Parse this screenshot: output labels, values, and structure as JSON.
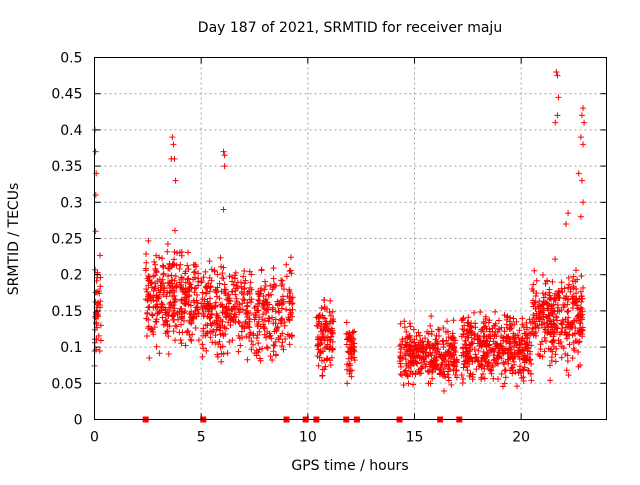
{
  "chart_data": {
    "type": "scatter",
    "title": "Day 187 of 2021, SRMTID for receiver maju",
    "xlabel": "GPS time / hours",
    "ylabel": "SRMTID / TECUs",
    "xlim": [
      0,
      24
    ],
    "ylim": [
      0,
      0.5
    ],
    "grid": true,
    "x_ticks": [
      0,
      5,
      10,
      15,
      20
    ],
    "x_tick_labels": [
      "0",
      "5",
      "10",
      "15",
      "20"
    ],
    "y_ticks": [
      0,
      0.05,
      0.1,
      0.15,
      0.2,
      0.25,
      0.3,
      0.35,
      0.4,
      0.45,
      0.5
    ],
    "y_tick_labels": [
      "0",
      "0.05",
      "0.1",
      "0.15",
      "0.2",
      "0.25",
      "0.3",
      "0.35",
      "0.4",
      "0.45",
      "0.5"
    ],
    "marker": "plus",
    "color": "#ff0000",
    "gap_markers": {
      "marker": "square",
      "y": 0,
      "x": [
        2.4,
        5.1,
        9.0,
        9.9,
        10.4,
        11.8,
        12.3,
        14.3,
        16.2,
        17.1
      ]
    },
    "clusters": [
      {
        "range": [
          0.0,
          0.3
        ],
        "center": 0.16,
        "spread": 0.06,
        "count": 45
      },
      {
        "range": [
          2.4,
          4.9
        ],
        "center": 0.17,
        "spread": 0.05,
        "count": 320
      },
      {
        "range": [
          5.0,
          9.3
        ],
        "center": 0.15,
        "spread": 0.05,
        "count": 460
      },
      {
        "range": [
          10.4,
          11.2
        ],
        "center": 0.11,
        "spread": 0.04,
        "count": 110
      },
      {
        "range": [
          11.8,
          12.2
        ],
        "center": 0.1,
        "spread": 0.03,
        "count": 55
      },
      {
        "range": [
          14.3,
          17.0
        ],
        "center": 0.09,
        "spread": 0.03,
        "count": 330
      },
      {
        "range": [
          17.2,
          20.5
        ],
        "center": 0.1,
        "spread": 0.035,
        "count": 420
      },
      {
        "range": [
          20.5,
          22.9
        ],
        "center": 0.14,
        "spread": 0.05,
        "count": 320
      }
    ],
    "outliers": [
      {
        "x": 0.02,
        "y": 0.4
      },
      {
        "x": 0.05,
        "y": 0.37
      },
      {
        "x": 0.08,
        "y": 0.34
      },
      {
        "x": 0.06,
        "y": 0.31
      },
      {
        "x": 0.05,
        "y": 0.26
      },
      {
        "x": 3.65,
        "y": 0.39
      },
      {
        "x": 3.7,
        "y": 0.38
      },
      {
        "x": 3.6,
        "y": 0.36
      },
      {
        "x": 3.75,
        "y": 0.36
      },
      {
        "x": 3.8,
        "y": 0.33
      },
      {
        "x": 6.05,
        "y": 0.37
      },
      {
        "x": 6.1,
        "y": 0.365
      },
      {
        "x": 6.1,
        "y": 0.35
      },
      {
        "x": 6.05,
        "y": 0.29
      },
      {
        "x": 21.65,
        "y": 0.48
      },
      {
        "x": 21.7,
        "y": 0.475
      },
      {
        "x": 21.75,
        "y": 0.445
      },
      {
        "x": 21.7,
        "y": 0.42
      },
      {
        "x": 21.6,
        "y": 0.41
      },
      {
        "x": 22.9,
        "y": 0.43
      },
      {
        "x": 22.85,
        "y": 0.42
      },
      {
        "x": 22.95,
        "y": 0.41
      },
      {
        "x": 22.8,
        "y": 0.39
      },
      {
        "x": 22.9,
        "y": 0.38
      },
      {
        "x": 22.7,
        "y": 0.34
      },
      {
        "x": 22.85,
        "y": 0.33
      },
      {
        "x": 22.9,
        "y": 0.3
      },
      {
        "x": 22.8,
        "y": 0.28
      },
      {
        "x": 22.2,
        "y": 0.285
      },
      {
        "x": 22.1,
        "y": 0.27
      }
    ]
  }
}
